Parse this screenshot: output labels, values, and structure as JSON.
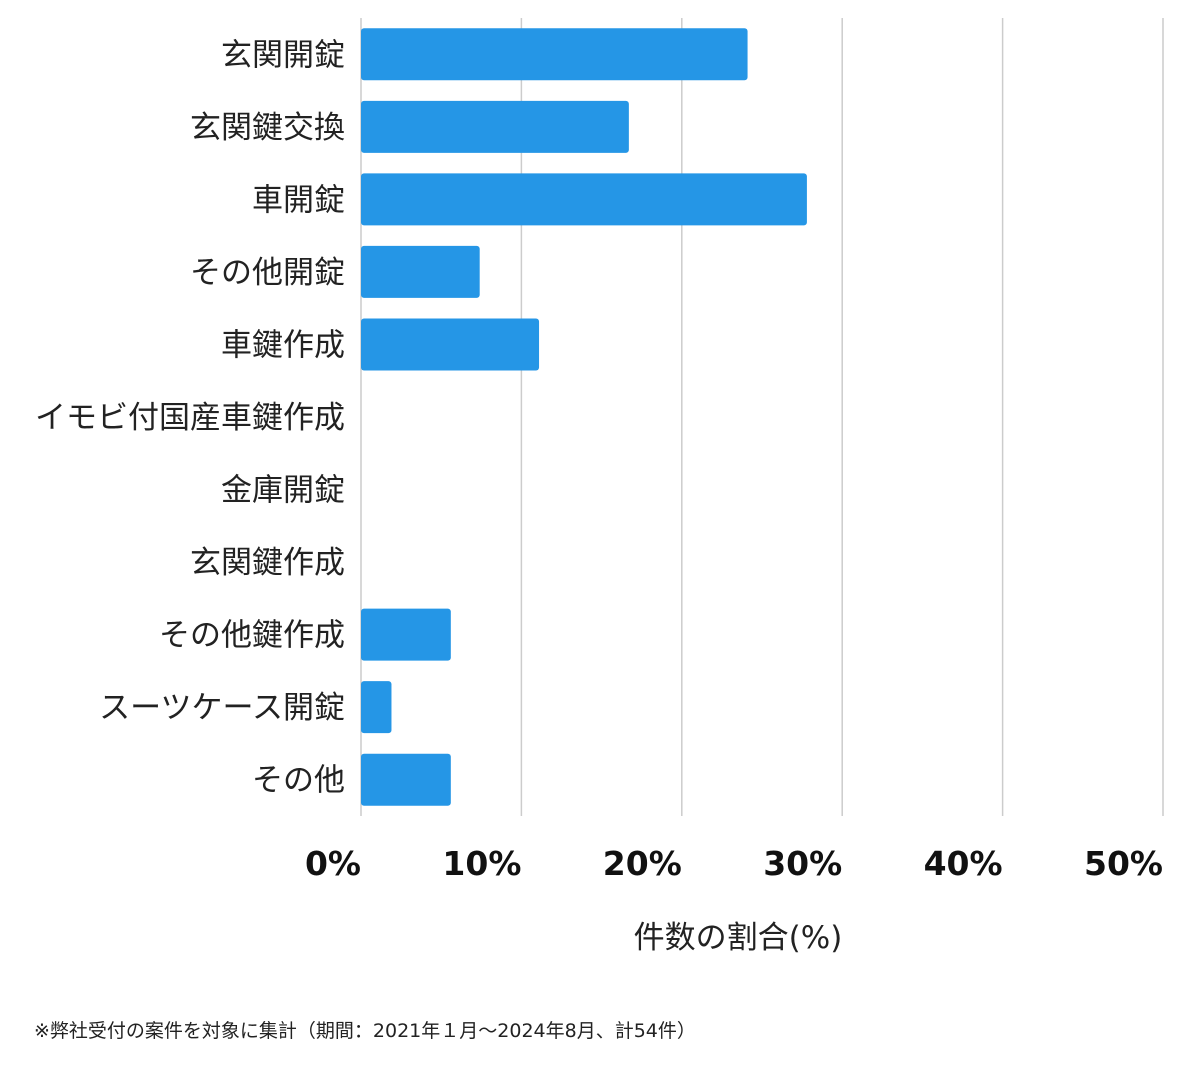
{
  "chart_data": {
    "type": "bar",
    "orientation": "horizontal",
    "categories": [
      "玄関開錠",
      "玄関鍵交換",
      "車開錠",
      "その他開錠",
      "車鍵作成",
      "イモビ付国産車鍵作成",
      "金庫開錠",
      "玄関鍵作成",
      "その他鍵作成",
      "スーツケース開錠",
      "その他"
    ],
    "values": [
      24.1,
      16.7,
      27.8,
      7.4,
      11.1,
      0,
      0,
      0,
      5.6,
      1.9,
      5.6
    ],
    "xlabel": "件数の割合(%)",
    "xlim": [
      0,
      50
    ],
    "xticks": [
      0,
      10,
      20,
      30,
      40,
      50
    ],
    "xtick_labels": [
      "0%",
      "10%",
      "20%",
      "30%",
      "40%",
      "50%"
    ],
    "grid": true,
    "bar_color": "#2596e6",
    "grid_color": "#cccccc"
  },
  "footnote": "※弊社受付の案件を対象に集計（期間：2021年１月〜2024年8月、計54件）"
}
